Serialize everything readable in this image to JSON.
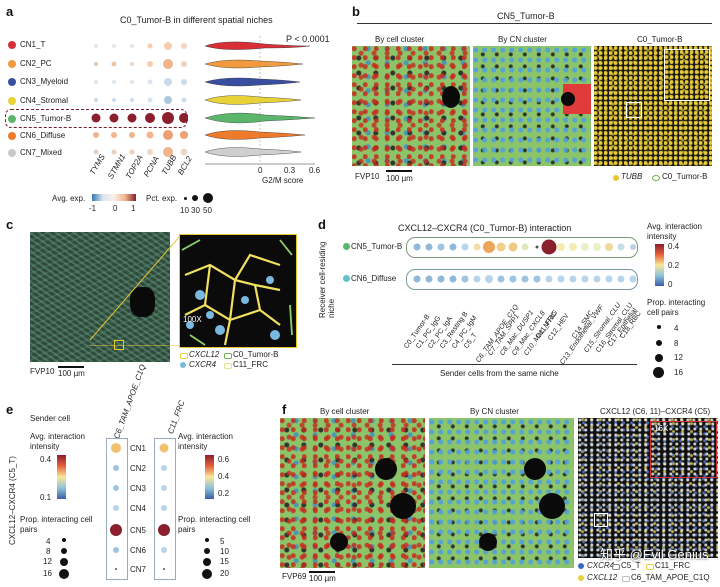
{
  "panels": {
    "a": "a",
    "b": "b",
    "c": "c",
    "d": "d",
    "e": "e",
    "f": "f"
  },
  "panel_a": {
    "title": "C0_Tumor-B in different spatial niches",
    "niches": [
      {
        "label": "CN1_T",
        "color": "#d62f36"
      },
      {
        "label": "CN2_PC",
        "color": "#f29a3e"
      },
      {
        "label": "CN3_Myeloid",
        "color": "#3a4ea0"
      },
      {
        "label": "CN4_Stromal",
        "color": "#e8d23a"
      },
      {
        "label": "CN5_Tumor-B",
        "color": "#5bb56a"
      },
      {
        "label": "CN6_Diffuse",
        "color": "#ee7a2c"
      },
      {
        "label": "CN7_Mixed",
        "color": "#c9c9c9"
      }
    ],
    "genes": [
      "TYMS",
      "STMN1",
      "TOP2A",
      "PCNA",
      "TUBB",
      "BCL2"
    ],
    "pvalue": "P < 0.0001",
    "violin_xlabel": "G2/M score",
    "violin_ticks": [
      "0",
      "0.3",
      "0.6"
    ],
    "legend_avg_exp": "Avg. exp.",
    "legend_avg_exp_ticks": [
      "-1",
      "0",
      "1"
    ],
    "legend_pct_exp": "Pct. exp.",
    "legend_pct_ticks": [
      "10",
      "30",
      "50"
    ]
  },
  "panel_b": {
    "title": "CN5_Tumor-B",
    "subtitles": [
      "By cell cluster",
      "By CN cluster",
      "C0_Tumor-B"
    ],
    "sample": "FVP10",
    "scale": "100 µm",
    "legend_tubb": "TUBB",
    "legend_c0": "C0_Tumor-B"
  },
  "panel_c": {
    "sample": "FVP10",
    "scale": "100 µm",
    "zoom": "100X",
    "legend": [
      "CXCL12",
      "C0_Tumor-B",
      "CXCR4",
      "C11_FRC"
    ]
  },
  "panel_d": {
    "title": "CXCL12–CXCR4 (C0_Tumor-B) interaction",
    "ylabel": "Receiver cell-residing niche",
    "rows": [
      "CN5_Tumor-B",
      "CN6_Diffuse"
    ],
    "senders": [
      "C0_Tumor-B",
      "C1_PC_IgG",
      "C2_PC_IgA",
      "C3_Resting B",
      "C4_PC_IgM",
      "C5_T",
      "C6_TAM_APOE_C1Q",
      "C7_TAM_SPP1",
      "C8_Mac_DUSP1",
      "C9_Mac_CXCL8",
      "C10_Mac_MT1G",
      "C11_FRC",
      "C12_HEV",
      "C13_Endothelial_VWF",
      "C14_SMC",
      "C15_Stromal_CLU",
      "C16_Stromal_CLU",
      "C17_Epithelial",
      "C18_RBC"
    ],
    "xlabel": "Sender cells from the same niche",
    "legend_intensity": "Avg. interaction intensity",
    "intensity_ticks": [
      "0.4",
      "0.2",
      "0"
    ],
    "legend_pairs": "Prop. interacting cell pairs",
    "pairs_ticks": [
      "4",
      "8",
      "12",
      "16"
    ]
  },
  "panel_e": {
    "sender_title": "Sender cell",
    "col1": "C6_TAM_APOE_C1Q",
    "col2": "C11_FRC",
    "ylabel": "CXCL12–CXCR4 (C5_T)",
    "rows": [
      "CN1",
      "CN2",
      "CN3",
      "CN4",
      "CN5",
      "CN6",
      "CN7"
    ],
    "legend_intensity": "Avg. interaction intensity",
    "left_ticks": [
      "0.4",
      "0.1"
    ],
    "right_ticks": [
      "0.6",
      "0.4",
      "0.2"
    ],
    "legend_pairs": "Prop. interacting cell pairs",
    "left_pairs": [
      "4",
      "8",
      "12",
      "16"
    ],
    "right_pairs": [
      "5",
      "10",
      "15",
      "20"
    ]
  },
  "panel_f": {
    "subtitles": [
      "By cell cluster",
      "By CN cluster",
      "CXCL12 (C6, 11)–CXCR4 (C5)"
    ],
    "sample": "FVP69",
    "scale": "100 µm",
    "zoom": "16X",
    "legend": [
      "CXCR4",
      "C5_T",
      "C11_FRC",
      "CXCL12",
      "C6_TAM_APOE_C1Q"
    ],
    "watermark": "知乎 @Evil Genius"
  },
  "colors": {
    "cn5_dot": "#7a1a2a",
    "accent_red": "#c8282e",
    "tissue_green": "#8cc46a"
  }
}
